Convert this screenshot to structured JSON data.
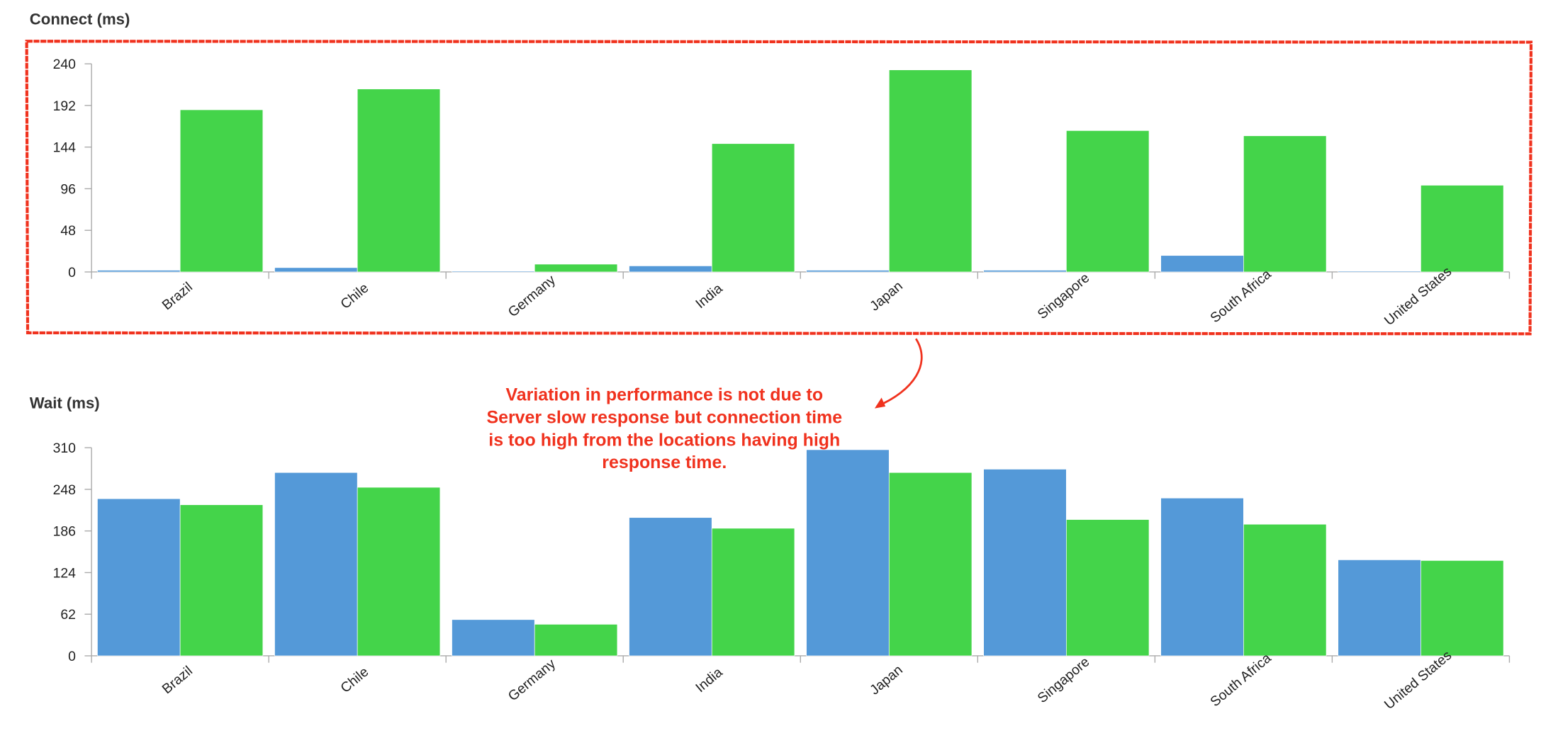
{
  "chart_data": [
    {
      "type": "bar",
      "title": "Connect (ms)",
      "categories": [
        "Brazil",
        "Chile",
        "Germany",
        "India",
        "Japan",
        "Singapore",
        "South Africa",
        "United States"
      ],
      "series": [
        {
          "color": "#5499d8",
          "values": [
            2,
            5,
            1,
            7,
            2,
            2,
            19,
            1
          ]
        },
        {
          "color": "#44d44a",
          "values": [
            187,
            211,
            9,
            148,
            233,
            163,
            157,
            100
          ]
        }
      ],
      "ylim": [
        0,
        240
      ],
      "yticks": [
        0,
        48,
        96,
        144,
        192,
        240
      ],
      "annotation": [
        "Variation in performance is not due to",
        "Server slow response but connection time",
        "is too high from the locations having high",
        "response time."
      ]
    },
    {
      "type": "bar",
      "title": "Wait (ms)",
      "categories": [
        "Brazil",
        "Chile",
        "Germany",
        "India",
        "Japan",
        "Singapore",
        "South Africa",
        "United States"
      ],
      "series": [
        {
          "color": "#5499d8",
          "values": [
            234,
            273,
            54,
            206,
            307,
            278,
            235,
            143
          ]
        },
        {
          "color": "#44d44a",
          "values": [
            225,
            251,
            47,
            190,
            273,
            203,
            196,
            142
          ]
        }
      ],
      "ylim": [
        0,
        310
      ],
      "yticks": [
        0,
        62,
        124,
        186,
        248,
        310
      ]
    }
  ]
}
